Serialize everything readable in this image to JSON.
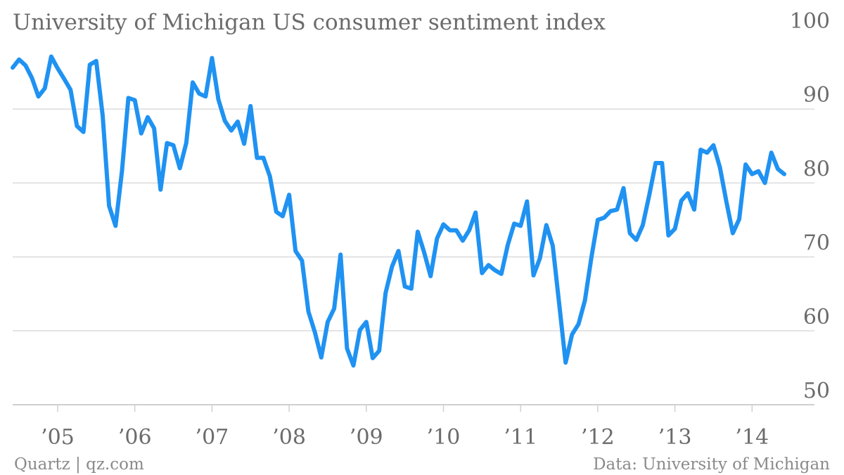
{
  "chart_data": {
    "type": "line",
    "title": "University of Michigan US consumer sentiment index",
    "xlabel": "",
    "ylabel": "",
    "ylim": [
      50,
      100
    ],
    "yticks": [
      100,
      90,
      80,
      70,
      60,
      50
    ],
    "xtick_labels": [
      "’05",
      "’06",
      "’07",
      "’08",
      "’09",
      "’10",
      "’11",
      "’12",
      "’13",
      "’14"
    ],
    "xtick_years": [
      2005,
      2006,
      2007,
      2008,
      2009,
      2010,
      2011,
      2012,
      2013,
      2014
    ],
    "x_start": "2004-06",
    "x_end": "2014-06",
    "grid": "horizontal",
    "legend": "none",
    "series": [
      {
        "color": "#1f92f2",
        "values": [
          95.6,
          96.7,
          95.9,
          94.2,
          91.7,
          92.8,
          97.1,
          95.5,
          94.1,
          92.6,
          87.7,
          86.9,
          96.0,
          96.5,
          89.1,
          76.9,
          74.2,
          81.6,
          91.5,
          91.2,
          86.7,
          88.9,
          87.4,
          79.1,
          85.4,
          85.1,
          82.0,
          85.4,
          93.6,
          92.1,
          91.7,
          96.9,
          91.3,
          88.4,
          87.1,
          88.3,
          85.3,
          90.4,
          83.4,
          83.4,
          80.9,
          76.1,
          75.5,
          78.4,
          70.8,
          69.5,
          62.6,
          59.8,
          56.4,
          61.2,
          63.0,
          70.3,
          57.6,
          55.3,
          60.1,
          61.2,
          56.3,
          57.3,
          65.1,
          68.7,
          70.8,
          66.0,
          65.7,
          73.4,
          70.6,
          67.4,
          72.5,
          74.4,
          73.6,
          73.6,
          72.2,
          73.6,
          76.0,
          67.8,
          68.9,
          68.2,
          67.7,
          71.6,
          74.5,
          74.2,
          77.5,
          67.5,
          69.8,
          74.3,
          71.5,
          63.7,
          55.7,
          59.5,
          60.9,
          64.1,
          69.9,
          75.0,
          75.3,
          76.2,
          76.4,
          79.3,
          73.2,
          72.3,
          74.3,
          78.3,
          82.7,
          82.7,
          72.9,
          73.8,
          77.6,
          78.6,
          76.4,
          84.5,
          84.1,
          85.1,
          82.1,
          77.5,
          73.2,
          75.1,
          82.5,
          81.2,
          81.6,
          80.0,
          84.1,
          81.9,
          81.2
        ]
      }
    ]
  },
  "footer": {
    "left": "Quartz | qz.com",
    "right": "Data: University of Michigan"
  }
}
